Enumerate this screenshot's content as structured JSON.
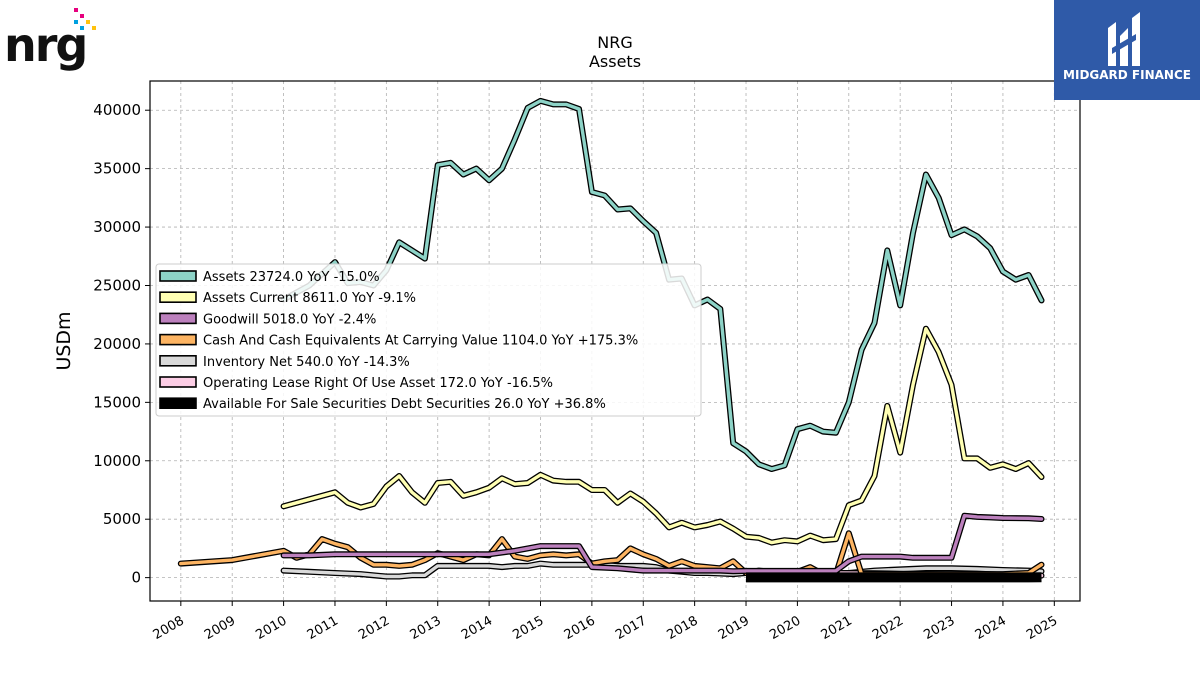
{
  "logo": {
    "company": "nrg",
    "brand": "MIDGARD FINANCE"
  },
  "chart_data": {
    "type": "line",
    "title": "NRG",
    "subtitle": "Assets",
    "ylabel": "USDm",
    "xlabel": "",
    "xlim": [
      2007.4,
      2025.5
    ],
    "ylim": [
      -2000,
      42500
    ],
    "grid": true,
    "legend_placement": "center-left",
    "x_ticks": [
      "2008",
      "2009",
      "2010",
      "2011",
      "2012",
      "2013",
      "2014",
      "2015",
      "2016",
      "2017",
      "2018",
      "2019",
      "2020",
      "2021",
      "2022",
      "2023",
      "2024",
      "2025"
    ],
    "y_ticks": [
      "0",
      "5000",
      "10000",
      "15000",
      "20000",
      "25000",
      "30000",
      "35000",
      "40000"
    ],
    "series": [
      {
        "name": "Assets",
        "legend": "Assets  23724.0 YoY -15.0%",
        "color": "#8dd3c7",
        "points": [
          [
            2010.0,
            23800
          ],
          [
            2010.5,
            25000
          ],
          [
            2011.0,
            27000
          ],
          [
            2011.25,
            25200
          ],
          [
            2011.5,
            25300
          ],
          [
            2011.75,
            25000
          ],
          [
            2012.0,
            26300
          ],
          [
            2012.25,
            28700
          ],
          [
            2012.5,
            28000
          ],
          [
            2012.75,
            27300
          ],
          [
            2013.0,
            35300
          ],
          [
            2013.25,
            35500
          ],
          [
            2013.5,
            34500
          ],
          [
            2013.75,
            35000
          ],
          [
            2014.0,
            34000
          ],
          [
            2014.25,
            35000
          ],
          [
            2014.5,
            37500
          ],
          [
            2014.75,
            40200
          ],
          [
            2015.0,
            40800
          ],
          [
            2015.25,
            40500
          ],
          [
            2015.5,
            40500
          ],
          [
            2015.75,
            40100
          ],
          [
            2016.0,
            33000
          ],
          [
            2016.25,
            32700
          ],
          [
            2016.5,
            31500
          ],
          [
            2016.75,
            31600
          ],
          [
            2017.0,
            30500
          ],
          [
            2017.25,
            29500
          ],
          [
            2017.5,
            25500
          ],
          [
            2017.75,
            25600
          ],
          [
            2018.0,
            23300
          ],
          [
            2018.25,
            23800
          ],
          [
            2018.5,
            23000
          ],
          [
            2018.75,
            11500
          ],
          [
            2019.0,
            10800
          ],
          [
            2019.25,
            9700
          ],
          [
            2019.5,
            9300
          ],
          [
            2019.75,
            9600
          ],
          [
            2020.0,
            12700
          ],
          [
            2020.25,
            13000
          ],
          [
            2020.5,
            12500
          ],
          [
            2020.75,
            12400
          ],
          [
            2021.0,
            15000
          ],
          [
            2021.25,
            19500
          ],
          [
            2021.5,
            21800
          ],
          [
            2021.75,
            28000
          ],
          [
            2022.0,
            23300
          ],
          [
            2022.25,
            29500
          ],
          [
            2022.5,
            34500
          ],
          [
            2022.75,
            32500
          ],
          [
            2023.0,
            29300
          ],
          [
            2023.25,
            29800
          ],
          [
            2023.5,
            29200
          ],
          [
            2023.75,
            28200
          ],
          [
            2024.0,
            26200
          ],
          [
            2024.25,
            25500
          ],
          [
            2024.5,
            25900
          ],
          [
            2024.75,
            23724
          ]
        ]
      },
      {
        "name": "Assets Current",
        "legend": "Assets Current  8611.0 YoY -9.1%",
        "color": "#ffffb3",
        "points": [
          [
            2010.0,
            6100
          ],
          [
            2010.5,
            6700
          ],
          [
            2011.0,
            7300
          ],
          [
            2011.25,
            6400
          ],
          [
            2011.5,
            6000
          ],
          [
            2011.75,
            6300
          ],
          [
            2012.0,
            7800
          ],
          [
            2012.25,
            8700
          ],
          [
            2012.5,
            7300
          ],
          [
            2012.75,
            6400
          ],
          [
            2013.0,
            8100
          ],
          [
            2013.25,
            8200
          ],
          [
            2013.5,
            7000
          ],
          [
            2013.75,
            7300
          ],
          [
            2014.0,
            7700
          ],
          [
            2014.25,
            8500
          ],
          [
            2014.5,
            8000
          ],
          [
            2014.75,
            8100
          ],
          [
            2015.0,
            8800
          ],
          [
            2015.25,
            8300
          ],
          [
            2015.5,
            8200
          ],
          [
            2015.75,
            8200
          ],
          [
            2016.0,
            7500
          ],
          [
            2016.25,
            7500
          ],
          [
            2016.5,
            6400
          ],
          [
            2016.75,
            7200
          ],
          [
            2017.0,
            6500
          ],
          [
            2017.25,
            5500
          ],
          [
            2017.5,
            4300
          ],
          [
            2017.75,
            4700
          ],
          [
            2018.0,
            4300
          ],
          [
            2018.25,
            4500
          ],
          [
            2018.5,
            4800
          ],
          [
            2018.75,
            4200
          ],
          [
            2019.0,
            3500
          ],
          [
            2019.25,
            3400
          ],
          [
            2019.5,
            3000
          ],
          [
            2019.75,
            3200
          ],
          [
            2020.0,
            3100
          ],
          [
            2020.25,
            3600
          ],
          [
            2020.5,
            3200
          ],
          [
            2020.75,
            3300
          ],
          [
            2021.0,
            6200
          ],
          [
            2021.25,
            6600
          ],
          [
            2021.5,
            8700
          ],
          [
            2021.75,
            14700
          ],
          [
            2022.0,
            10700
          ],
          [
            2022.25,
            16500
          ],
          [
            2022.5,
            21300
          ],
          [
            2022.75,
            19300
          ],
          [
            2023.0,
            16500
          ],
          [
            2023.25,
            10200
          ],
          [
            2023.5,
            10200
          ],
          [
            2023.75,
            9400
          ],
          [
            2024.0,
            9700
          ],
          [
            2024.25,
            9300
          ],
          [
            2024.5,
            9800
          ],
          [
            2024.75,
            8611
          ]
        ]
      },
      {
        "name": "Goodwill",
        "legend": "Goodwill  5018.0 YoY -2.4%",
        "color": "#bc80bd",
        "points": [
          [
            2010.0,
            1900
          ],
          [
            2010.5,
            1900
          ],
          [
            2011.0,
            2000
          ],
          [
            2011.5,
            2000
          ],
          [
            2012.0,
            2000
          ],
          [
            2012.5,
            2000
          ],
          [
            2013.0,
            2000
          ],
          [
            2013.5,
            2000
          ],
          [
            2014.0,
            2000
          ],
          [
            2014.5,
            2300
          ],
          [
            2014.75,
            2500
          ],
          [
            2015.0,
            2700
          ],
          [
            2015.5,
            2700
          ],
          [
            2015.75,
            2700
          ],
          [
            2016.0,
            900
          ],
          [
            2016.5,
            800
          ],
          [
            2017.0,
            600
          ],
          [
            2017.25,
            600
          ],
          [
            2017.5,
            600
          ],
          [
            2018.0,
            600
          ],
          [
            2018.5,
            600
          ],
          [
            2018.75,
            550
          ],
          [
            2019.0,
            580
          ],
          [
            2019.5,
            580
          ],
          [
            2020.0,
            580
          ],
          [
            2020.5,
            580
          ],
          [
            2020.75,
            580
          ],
          [
            2021.0,
            1400
          ],
          [
            2021.25,
            1800
          ],
          [
            2021.5,
            1800
          ],
          [
            2022.0,
            1800
          ],
          [
            2022.25,
            1700
          ],
          [
            2022.5,
            1700
          ],
          [
            2022.75,
            1700
          ],
          [
            2023.0,
            1700
          ],
          [
            2023.25,
            5300
          ],
          [
            2023.5,
            5200
          ],
          [
            2023.75,
            5150
          ],
          [
            2024.0,
            5100
          ],
          [
            2024.5,
            5080
          ],
          [
            2024.75,
            5018
          ]
        ]
      },
      {
        "name": "Cash And Cash Equivalents At Carrying Value",
        "legend": "Cash And Cash Equivalents At Carrying Value  1104.0 YoY +175.3%",
        "color": "#fdb462",
        "points": [
          [
            2008.0,
            1200
          ],
          [
            2009.0,
            1500
          ],
          [
            2010.0,
            2300
          ],
          [
            2010.25,
            1700
          ],
          [
            2010.5,
            2000
          ],
          [
            2010.75,
            3300
          ],
          [
            2011.0,
            2900
          ],
          [
            2011.25,
            2600
          ],
          [
            2011.5,
            1700
          ],
          [
            2011.75,
            1100
          ],
          [
            2012.0,
            1100
          ],
          [
            2012.25,
            1000
          ],
          [
            2012.5,
            1100
          ],
          [
            2012.75,
            1500
          ],
          [
            2013.0,
            2100
          ],
          [
            2013.25,
            1800
          ],
          [
            2013.5,
            1500
          ],
          [
            2013.75,
            2000
          ],
          [
            2014.0,
            1900
          ],
          [
            2014.25,
            3300
          ],
          [
            2014.5,
            1800
          ],
          [
            2014.75,
            1600
          ],
          [
            2015.0,
            1900
          ],
          [
            2015.25,
            2000
          ],
          [
            2015.5,
            1900
          ],
          [
            2015.75,
            2000
          ],
          [
            2016.0,
            1200
          ],
          [
            2016.25,
            1400
          ],
          [
            2016.5,
            1500
          ],
          [
            2016.75,
            2500
          ],
          [
            2017.0,
            2000
          ],
          [
            2017.25,
            1600
          ],
          [
            2017.5,
            1000
          ],
          [
            2017.75,
            1400
          ],
          [
            2018.0,
            1000
          ],
          [
            2018.25,
            900
          ],
          [
            2018.5,
            800
          ],
          [
            2018.75,
            1400
          ],
          [
            2019.0,
            400
          ],
          [
            2019.25,
            600
          ],
          [
            2019.5,
            500
          ],
          [
            2019.75,
            400
          ],
          [
            2020.0,
            500
          ],
          [
            2020.25,
            900
          ],
          [
            2020.5,
            300
          ],
          [
            2020.75,
            300
          ],
          [
            2021.0,
            3800
          ],
          [
            2021.25,
            300
          ],
          [
            2021.5,
            300
          ],
          [
            2022.0,
            300
          ],
          [
            2022.5,
            300
          ],
          [
            2023.0,
            300
          ],
          [
            2023.5,
            300
          ],
          [
            2024.0,
            300
          ],
          [
            2024.5,
            400
          ],
          [
            2024.75,
            1104
          ]
        ]
      },
      {
        "name": "Inventory Net",
        "legend": "Inventory Net  540.0 YoY -14.3%",
        "color": "#d9d9d9",
        "points": [
          [
            2010.0,
            600
          ],
          [
            2010.5,
            500
          ],
          [
            2011.0,
            400
          ],
          [
            2011.5,
            300
          ],
          [
            2012.0,
            100
          ],
          [
            2012.25,
            100
          ],
          [
            2012.5,
            200
          ],
          [
            2012.75,
            200
          ],
          [
            2013.0,
            1000
          ],
          [
            2013.25,
            1000
          ],
          [
            2013.5,
            1000
          ],
          [
            2013.75,
            1000
          ],
          [
            2014.0,
            1000
          ],
          [
            2014.25,
            900
          ],
          [
            2014.5,
            1000
          ],
          [
            2014.75,
            1000
          ],
          [
            2015.0,
            1200
          ],
          [
            2015.25,
            1100
          ],
          [
            2015.5,
            1100
          ],
          [
            2015.75,
            1100
          ],
          [
            2016.0,
            1100
          ],
          [
            2016.25,
            1100
          ],
          [
            2016.5,
            1000
          ],
          [
            2016.75,
            1000
          ],
          [
            2017.0,
            1000
          ],
          [
            2017.25,
            900
          ],
          [
            2017.5,
            600
          ],
          [
            2017.75,
            500
          ],
          [
            2018.0,
            400
          ],
          [
            2018.25,
            400
          ],
          [
            2018.5,
            350
          ],
          [
            2018.75,
            300
          ],
          [
            2019.0,
            400
          ],
          [
            2019.25,
            400
          ],
          [
            2019.5,
            400
          ],
          [
            2019.75,
            400
          ],
          [
            2020.0,
            400
          ],
          [
            2020.5,
            400
          ],
          [
            2021.0,
            400
          ],
          [
            2021.5,
            600
          ],
          [
            2022.0,
            700
          ],
          [
            2022.5,
            800
          ],
          [
            2023.0,
            800
          ],
          [
            2023.5,
            750
          ],
          [
            2024.0,
            650
          ],
          [
            2024.5,
            600
          ],
          [
            2024.75,
            540
          ]
        ]
      },
      {
        "name": "Operating Lease Right Of Use Asset",
        "legend": "Operating Lease Right Of Use Asset  172.0 YoY -16.5%",
        "color": "#fccde5",
        "points": [
          [
            2019.0,
            460
          ],
          [
            2019.5,
            440
          ],
          [
            2020.0,
            420
          ],
          [
            2020.5,
            400
          ],
          [
            2021.0,
            390
          ],
          [
            2021.5,
            380
          ],
          [
            2022.0,
            330
          ],
          [
            2022.5,
            300
          ],
          [
            2023.0,
            260
          ],
          [
            2023.5,
            230
          ],
          [
            2024.0,
            205
          ],
          [
            2024.5,
            190
          ],
          [
            2024.75,
            172
          ]
        ]
      },
      {
        "name": "Available For Sale Securities Debt Securities",
        "legend": "Available For Sale Securities Debt Securities  26.0 YoY +36.8%",
        "color": "#000000",
        "thick": true,
        "points": [
          [
            2019.0,
            20
          ],
          [
            2019.5,
            20
          ],
          [
            2020.0,
            20
          ],
          [
            2020.5,
            20
          ],
          [
            2021.0,
            20
          ],
          [
            2021.5,
            20
          ],
          [
            2022.0,
            20
          ],
          [
            2022.5,
            20
          ],
          [
            2023.0,
            20
          ],
          [
            2023.5,
            20
          ],
          [
            2024.0,
            20
          ],
          [
            2024.5,
            20
          ],
          [
            2024.75,
            26
          ]
        ]
      }
    ]
  }
}
